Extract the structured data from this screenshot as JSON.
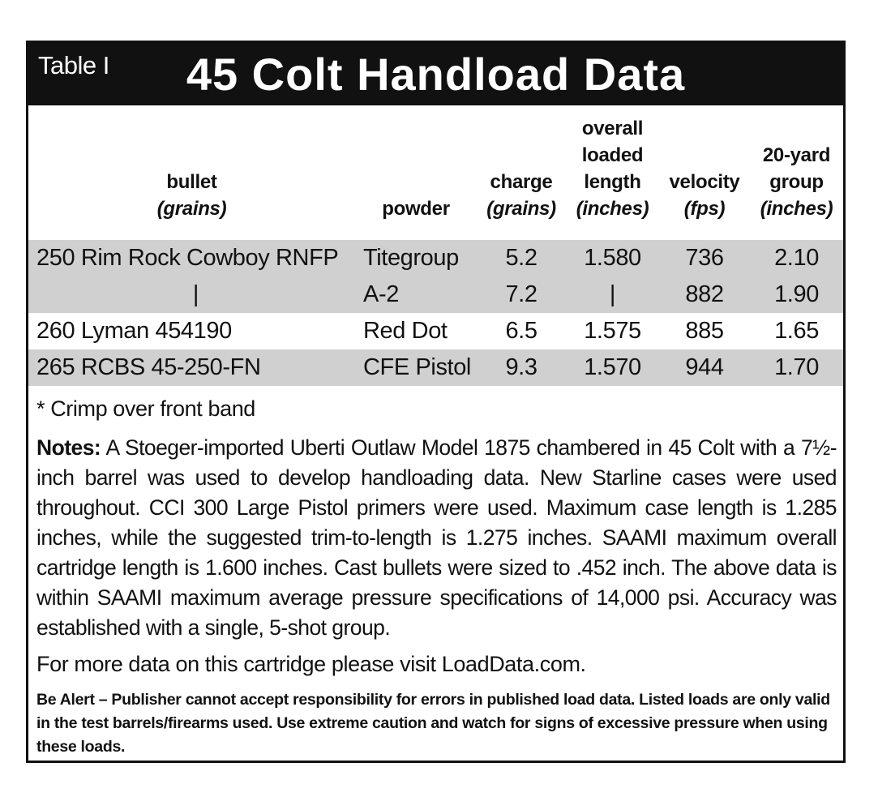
{
  "header": {
    "label": "Table I",
    "title": "45 Colt Handload Data"
  },
  "table": {
    "columns": [
      {
        "lines": [
          "bullet"
        ],
        "unit": "(grains)"
      },
      {
        "lines": [
          "powder"
        ]
      },
      {
        "lines": [
          "charge"
        ],
        "unit": "(grains)"
      },
      {
        "lines": [
          "overall",
          "loaded",
          "length"
        ],
        "unit": "(inches)"
      },
      {
        "lines": [
          "velocity"
        ],
        "unit": "(fps)"
      },
      {
        "lines": [
          "20-yard",
          "group"
        ],
        "unit": "(inches)"
      }
    ],
    "rows": [
      {
        "shaded": true,
        "cells": [
          "250 Rim Rock Cowboy RNFP",
          "Titegroup",
          "5.2",
          "1.580",
          "736",
          "2.10"
        ]
      },
      {
        "shaded": true,
        "cells": [
          "|",
          "A-2",
          "7.2",
          "|",
          "882",
          "1.90"
        ]
      },
      {
        "shaded": false,
        "cells": [
          "260 Lyman 454190",
          "Red Dot",
          "6.5",
          "1.575",
          "885",
          "1.65"
        ]
      },
      {
        "shaded": true,
        "cells": [
          "265 RCBS 45-250-FN",
          "CFE Pistol",
          "9.3",
          "1.570",
          "944",
          "1.70"
        ]
      }
    ]
  },
  "footnote": "* Crimp over front band",
  "notes": {
    "label": "Notes:",
    "text": "A Stoeger-imported Uberti Outlaw Model 1875 chambered in 45 Colt with a 7½-inch barrel was used to develop handloading data. New Starline cases were used throughout. CCI 300 Large Pistol primers were used. Maximum case length is 1.285 inches, while the suggested trim-to-length is 1.275 inches. SAAMI maximum overall cartridge length is 1.600 inches. Cast bullets were sized to .452 inch. The above data is within SAAMI maximum average pressure specifications of 14,000 psi. Accuracy was established with a single, 5-shot group."
  },
  "more_info": "For more data on this cartridge please visit LoadData.com.",
  "warning": "Be Alert – Publisher cannot accept responsibility for errors in published load data. Listed loads are only valid in the test barrels/firearms used. Use extreme caution and watch for signs of excessive pressure when using these loads."
}
